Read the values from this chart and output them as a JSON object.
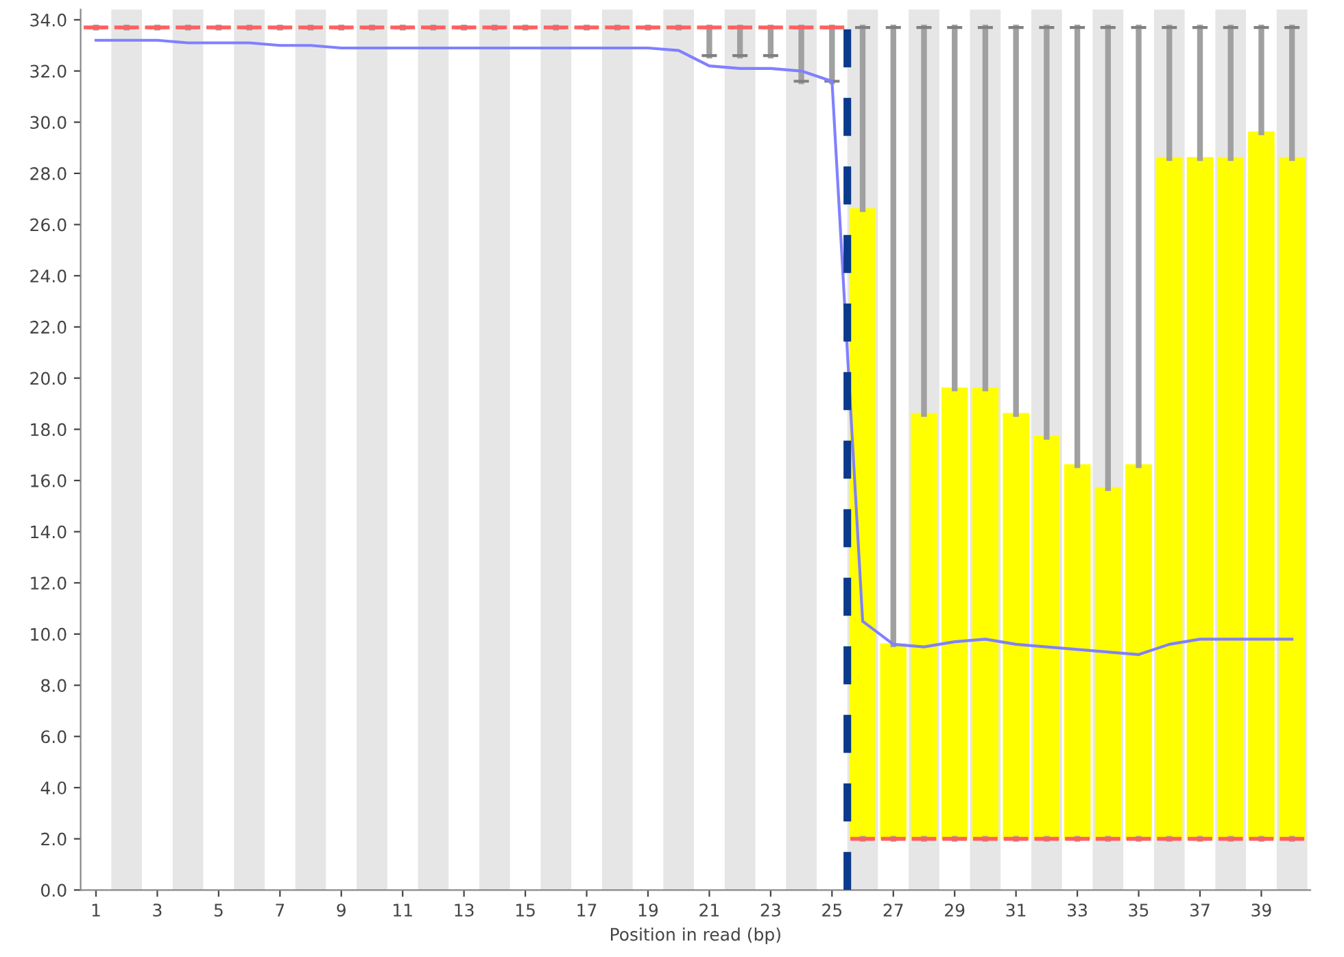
{
  "chart_data": {
    "type": "box",
    "xlabel": "Position in read (bp)",
    "categories": [
      "1",
      null,
      "3",
      null,
      "5",
      null,
      "7",
      null,
      "9",
      null,
      "11",
      null,
      "13",
      null,
      "15",
      null,
      "17",
      null,
      "19",
      null,
      "21",
      null,
      "23",
      null,
      "25",
      null,
      "27",
      null,
      "29",
      null,
      "31",
      null,
      "33",
      null,
      "35",
      null,
      "37",
      null,
      "39",
      null
    ],
    "ylim": [
      0,
      34.4
    ],
    "grid": false,
    "yticks": [
      {
        "value": 0,
        "label": "0.0"
      },
      {
        "value": 2,
        "label": "2.0"
      },
      {
        "value": 4,
        "label": "4.0"
      },
      {
        "value": 6,
        "label": "6.0"
      },
      {
        "value": 8,
        "label": "8.0"
      },
      {
        "value": 10,
        "label": "10.0"
      },
      {
        "value": 12,
        "label": "12.0"
      },
      {
        "value": 14,
        "label": "14.0"
      },
      {
        "value": 16,
        "label": "16.0"
      },
      {
        "value": 18,
        "label": "18.0"
      },
      {
        "value": 20,
        "label": "20.0"
      },
      {
        "value": 22,
        "label": "22.0"
      },
      {
        "value": 24,
        "label": "24.0"
      },
      {
        "value": 26,
        "label": "26.0"
      },
      {
        "value": 28,
        "label": "28.0"
      },
      {
        "value": 30,
        "label": "30.0"
      },
      {
        "value": 32,
        "label": "32.0"
      },
      {
        "value": 34,
        "label": "34.0"
      }
    ],
    "series": [
      {
        "color": "#ffff00",
        "boxes": [
          {
            "low": 33.7,
            "q1": 33.7,
            "median": 33.7,
            "q3": 33.7,
            "high": 33.7
          },
          {
            "low": 33.7,
            "q1": 33.7,
            "median": 33.7,
            "q3": 33.7,
            "high": 33.7
          },
          {
            "low": 33.7,
            "q1": 33.7,
            "median": 33.7,
            "q3": 33.7,
            "high": 33.7
          },
          {
            "low": 33.7,
            "q1": 33.7,
            "median": 33.7,
            "q3": 33.7,
            "high": 33.7
          },
          {
            "low": 33.7,
            "q1": 33.7,
            "median": 33.7,
            "q3": 33.7,
            "high": 33.7
          },
          {
            "low": 33.7,
            "q1": 33.7,
            "median": 33.7,
            "q3": 33.7,
            "high": 33.7
          },
          {
            "low": 33.7,
            "q1": 33.7,
            "median": 33.7,
            "q3": 33.7,
            "high": 33.7
          },
          {
            "low": 33.7,
            "q1": 33.7,
            "median": 33.7,
            "q3": 33.7,
            "high": 33.7
          },
          {
            "low": 33.7,
            "q1": 33.7,
            "median": 33.7,
            "q3": 33.7,
            "high": 33.7
          },
          {
            "low": 33.7,
            "q1": 33.7,
            "median": 33.7,
            "q3": 33.7,
            "high": 33.7
          },
          {
            "low": 33.7,
            "q1": 33.7,
            "median": 33.7,
            "q3": 33.7,
            "high": 33.7
          },
          {
            "low": 33.7,
            "q1": 33.7,
            "median": 33.7,
            "q3": 33.7,
            "high": 33.7
          },
          {
            "low": 33.7,
            "q1": 33.7,
            "median": 33.7,
            "q3": 33.7,
            "high": 33.7
          },
          {
            "low": 33.7,
            "q1": 33.7,
            "median": 33.7,
            "q3": 33.7,
            "high": 33.7
          },
          {
            "low": 33.7,
            "q1": 33.7,
            "median": 33.7,
            "q3": 33.7,
            "high": 33.7
          },
          {
            "low": 33.7,
            "q1": 33.7,
            "median": 33.7,
            "q3": 33.7,
            "high": 33.7
          },
          {
            "low": 33.7,
            "q1": 33.7,
            "median": 33.7,
            "q3": 33.7,
            "high": 33.7
          },
          {
            "low": 33.7,
            "q1": 33.7,
            "median": 33.7,
            "q3": 33.7,
            "high": 33.7
          },
          {
            "low": 33.7,
            "q1": 33.7,
            "median": 33.7,
            "q3": 33.7,
            "high": 33.7
          },
          {
            "low": 33.7,
            "q1": 33.7,
            "median": 33.7,
            "q3": 33.7,
            "high": 33.7
          },
          {
            "low": 32.6,
            "q1": 33.7,
            "median": 33.7,
            "q3": 33.7,
            "high": 33.7
          },
          {
            "low": 32.6,
            "q1": 33.7,
            "median": 33.7,
            "q3": 33.7,
            "high": 33.7
          },
          {
            "low": 32.6,
            "q1": 33.7,
            "median": 33.7,
            "q3": 33.7,
            "high": 33.7
          },
          {
            "low": 31.6,
            "q1": 33.7,
            "median": 33.7,
            "q3": 33.7,
            "high": 33.7
          },
          {
            "low": 31.6,
            "q1": 33.7,
            "median": 33.7,
            "q3": 33.7,
            "high": 33.7
          },
          {
            "low": 2,
            "q1": 2,
            "median": 2,
            "q3": 26.6,
            "high": 33.7
          },
          {
            "low": 2,
            "q1": 2,
            "median": 2,
            "q3": 9.6,
            "high": 33.7
          },
          {
            "low": 2,
            "q1": 2,
            "median": 2,
            "q3": 18.6,
            "high": 33.7
          },
          {
            "low": 2,
            "q1": 2,
            "median": 2,
            "q3": 19.6,
            "high": 33.7
          },
          {
            "low": 2,
            "q1": 2,
            "median": 2,
            "q3": 19.6,
            "high": 33.7
          },
          {
            "low": 2,
            "q1": 2,
            "median": 2,
            "q3": 18.6,
            "high": 33.7
          },
          {
            "low": 2,
            "q1": 2,
            "median": 2,
            "q3": 17.7,
            "high": 33.7
          },
          {
            "low": 2,
            "q1": 2,
            "median": 2,
            "q3": 16.6,
            "high": 33.7
          },
          {
            "low": 2,
            "q1": 2,
            "median": 2,
            "q3": 15.7,
            "high": 33.7
          },
          {
            "low": 2,
            "q1": 2,
            "median": 2,
            "q3": 16.6,
            "high": 33.7
          },
          {
            "low": 2,
            "q1": 2,
            "median": 2,
            "q3": 28.6,
            "high": 33.7
          },
          {
            "low": 2,
            "q1": 2,
            "median": 2,
            "q3": 28.6,
            "high": 33.7
          },
          {
            "low": 2,
            "q1": 2,
            "median": 2,
            "q3": 28.6,
            "high": 33.7
          },
          {
            "low": 2,
            "q1": 2,
            "median": 2,
            "q3": 29.6,
            "high": 33.7
          },
          {
            "low": 2,
            "q1": 2,
            "median": 2,
            "q3": 28.6,
            "high": 33.7
          }
        ]
      },
      {
        "type": "line",
        "color": "#8080ff",
        "values": [
          33.2,
          33.2,
          33.2,
          33.1,
          33.1,
          33.1,
          33.0,
          33.0,
          32.9,
          32.9,
          32.9,
          32.9,
          32.9,
          32.9,
          32.9,
          32.9,
          32.9,
          32.9,
          32.9,
          32.8,
          32.2,
          32.1,
          32.1,
          32.0,
          31.6,
          10.5,
          9.6,
          9.5,
          9.7,
          9.8,
          9.6,
          9.5,
          9.4,
          9.3,
          9.2,
          9.6,
          9.8,
          9.8,
          9.8,
          9.8
        ]
      }
    ]
  }
}
